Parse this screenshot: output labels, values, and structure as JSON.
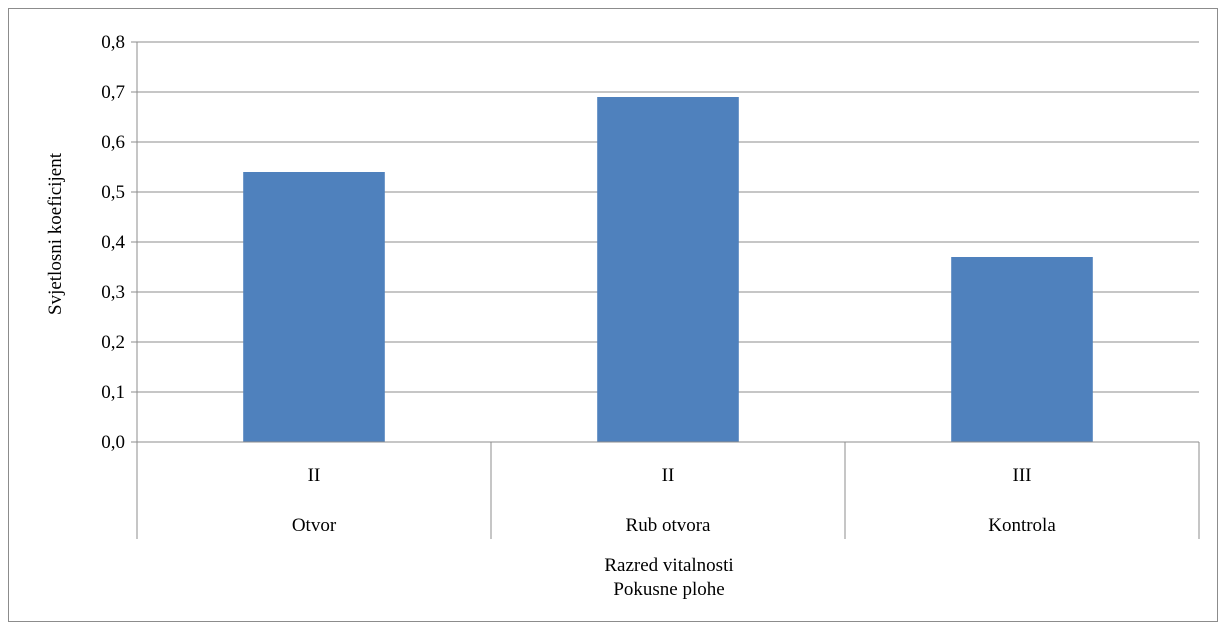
{
  "chart_data": {
    "type": "bar",
    "title": "",
    "ylabel": "Svjetlosni koeficijent",
    "xlabel_lines": [
      "Razred vitalnosti",
      "Pokusne plohe"
    ],
    "categories": [
      {
        "level1": "II",
        "level2": "Otvor"
      },
      {
        "level1": "II",
        "level2": "Rub otvora"
      },
      {
        "level1": "III",
        "level2": "Kontrola"
      }
    ],
    "values": [
      0.54,
      0.69,
      0.37
    ],
    "ylim": [
      0,
      0.8
    ],
    "yticks": [
      "0,0",
      "0,1",
      "0,2",
      "0,3",
      "0,4",
      "0,5",
      "0,6",
      "0,7",
      "0,8"
    ],
    "grid": true,
    "legend": "none",
    "bar_color": "#4f81bd"
  }
}
